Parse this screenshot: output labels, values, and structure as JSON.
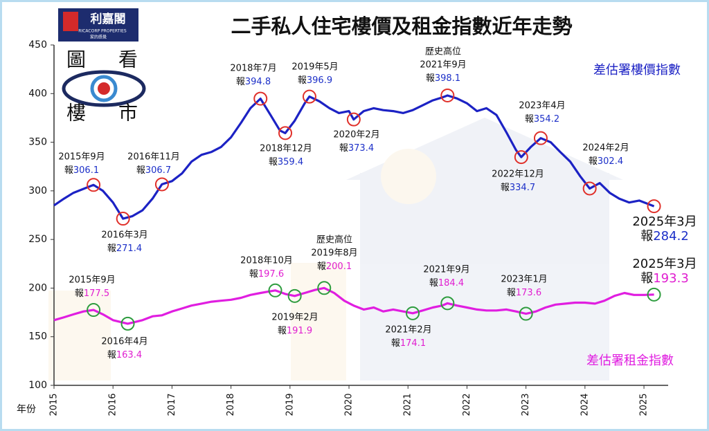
{
  "chart_data": {
    "type": "line",
    "title": "二手私人住宅樓價及租金指數近年走勢",
    "logo": {
      "name": "利嘉閣",
      "english": "RICACORP PROPERTIES",
      "slogan": "家的感覺",
      "chars": [
        "圖",
        "看",
        "樓",
        "市"
      ]
    },
    "x_label": "年份",
    "xlim": [
      2015,
      2025.41
    ],
    "xticks": [
      2015,
      2016,
      2017,
      2018,
      2019,
      2020,
      2021,
      2022,
      2023,
      2024,
      2025
    ],
    "ylim": [
      100,
      450
    ],
    "yticks": [
      100,
      150,
      200,
      250,
      300,
      350,
      400,
      450
    ],
    "series": [
      {
        "name": "差估署樓價指數",
        "color": "#1c22c4",
        "value_color": "#1c2fc8",
        "circle_color": "#e0302a",
        "value_prefix": "報",
        "x": [
          2015.0,
          2015.17,
          2015.33,
          2015.5,
          2015.67,
          2015.83,
          2016.0,
          2016.17,
          2016.33,
          2016.5,
          2016.67,
          2016.83,
          2017.0,
          2017.17,
          2017.33,
          2017.5,
          2017.67,
          2017.83,
          2018.0,
          2018.17,
          2018.33,
          2018.5,
          2018.67,
          2018.83,
          2018.92,
          2019.08,
          2019.25,
          2019.33,
          2019.5,
          2019.67,
          2019.83,
          2020.0,
          2020.08,
          2020.25,
          2020.42,
          2020.58,
          2020.75,
          2020.92,
          2021.08,
          2021.25,
          2021.42,
          2021.58,
          2021.67,
          2021.83,
          2022.0,
          2022.17,
          2022.33,
          2022.5,
          2022.67,
          2022.83,
          2022.92,
          2023.08,
          2023.25,
          2023.42,
          2023.58,
          2023.75,
          2023.92,
          2024.08,
          2024.25,
          2024.42,
          2024.58,
          2024.75,
          2024.92,
          2025.17
        ],
        "values": [
          285,
          292,
          298,
          302,
          306.1,
          300,
          288,
          271.4,
          274,
          280,
          292,
          306.7,
          310,
          318,
          330,
          337,
          340,
          345,
          355,
          370,
          385,
          394.8,
          378,
          362,
          359.4,
          372,
          390,
          396.9,
          392,
          385,
          380,
          382,
          373.4,
          382,
          385,
          383,
          382,
          380,
          383,
          388,
          393,
          396,
          398.1,
          395,
          390,
          382,
          385,
          378,
          360,
          342,
          334.7,
          345,
          354.2,
          350,
          340,
          330,
          315,
          302.4,
          308,
          298,
          292,
          288,
          290,
          284.2
        ],
        "annotations": [
          {
            "date": "2015年9月",
            "x": 2015.67,
            "value": 306.1
          },
          {
            "date": "2016年3月",
            "x": 2016.17,
            "value": 271.4
          },
          {
            "date": "2016年11月",
            "x": 2016.83,
            "value": 306.7
          },
          {
            "date": "2018年7月",
            "x": 2018.5,
            "value": 394.8
          },
          {
            "date": "2018年12月",
            "x": 2018.92,
            "value": 359.4
          },
          {
            "date": "2019年5月",
            "x": 2019.33,
            "value": 396.9
          },
          {
            "date": "2020年2月",
            "x": 2020.08,
            "value": 373.4
          },
          {
            "note": "歷史高位",
            "date": "2021年9月",
            "x": 2021.67,
            "value": 398.1
          },
          {
            "date": "2022年12月",
            "x": 2022.92,
            "value": 334.7
          },
          {
            "date": "2023年4月",
            "x": 2023.25,
            "value": 354.2
          },
          {
            "date": "2024年2月",
            "x": 2024.08,
            "value": 302.4
          },
          {
            "date": "2025年3月",
            "x": 2025.17,
            "value": 284.2
          }
        ]
      },
      {
        "name": "差估署租金指數",
        "color": "#e01ee0",
        "value_color": "#e01ed0",
        "circle_color": "#2e9c3e",
        "value_prefix": "報",
        "x": [
          2015.0,
          2015.17,
          2015.33,
          2015.5,
          2015.67,
          2015.83,
          2016.0,
          2016.25,
          2016.5,
          2016.67,
          2016.83,
          2017.0,
          2017.17,
          2017.33,
          2017.5,
          2017.67,
          2017.83,
          2018.0,
          2018.17,
          2018.33,
          2018.5,
          2018.75,
          2018.92,
          2019.08,
          2019.25,
          2019.42,
          2019.58,
          2019.75,
          2019.92,
          2020.08,
          2020.25,
          2020.42,
          2020.58,
          2020.75,
          2020.92,
          2021.08,
          2021.25,
          2021.42,
          2021.58,
          2021.67,
          2021.83,
          2022.0,
          2022.17,
          2022.33,
          2022.5,
          2022.67,
          2022.83,
          2023.0,
          2023.17,
          2023.33,
          2023.5,
          2023.67,
          2023.83,
          2024.0,
          2024.17,
          2024.33,
          2024.5,
          2024.67,
          2024.83,
          2025.0,
          2025.17
        ],
        "values": [
          167,
          170,
          173,
          176,
          177.5,
          173,
          167,
          163.4,
          167,
          171,
          172,
          176,
          179,
          182,
          184,
          186,
          187,
          188,
          190,
          193,
          195,
          197.6,
          194,
          191.9,
          195,
          198,
          200.1,
          195,
          187,
          182,
          178,
          180,
          176,
          178,
          176,
          174.1,
          177,
          180,
          182,
          184.4,
          182,
          180,
          178,
          177,
          177,
          178,
          176,
          173.6,
          176,
          180,
          183,
          184,
          185,
          185,
          184,
          187,
          192,
          195,
          193,
          193,
          193.3
        ],
        "annotations": [
          {
            "date": "2015年9月",
            "x": 2015.67,
            "value": 177.5
          },
          {
            "date": "2016年4月",
            "x": 2016.25,
            "value": 163.4
          },
          {
            "date": "2018年10月",
            "x": 2018.75,
            "value": 197.6
          },
          {
            "date": "2019年2月",
            "x": 2019.08,
            "value": 191.9
          },
          {
            "note": "歷史高位",
            "date": "2019年8月",
            "x": 2019.58,
            "value": 200.1
          },
          {
            "date": "2021年2月",
            "x": 2021.08,
            "value": 174.1
          },
          {
            "date": "2021年9月",
            "x": 2021.67,
            "value": 184.4
          },
          {
            "date": "2023年1月",
            "x": 2023.0,
            "value": 173.6
          },
          {
            "date": "2025年3月",
            "x": 2025.17,
            "value": 193.3
          }
        ]
      }
    ]
  }
}
